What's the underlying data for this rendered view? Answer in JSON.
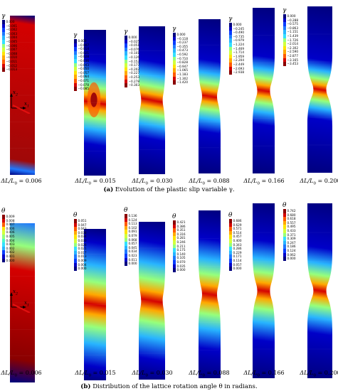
{
  "panels": [
    {
      "id": "a",
      "caption_label": "(a)",
      "caption_text": "Evolution of the plastic slip variable γ.",
      "variable": "γ",
      "specimens": [
        {
          "strain": "0.006",
          "legend": [
            "0.000",
            "−0.001",
            "−0.002",
            "−0.003",
            "−0.004",
            "−0.005",
            "−0.006",
            "−0.007",
            "−0.008",
            "−0.010",
            "−0.011",
            "−0.012",
            "−0.013"
          ]
        },
        {
          "strain": "0.015",
          "legend": [
            "0.000",
            "−0.007",
            "−0.014",
            "−0.021",
            "−0.028",
            "−0.036",
            "−0.043",
            "−0.050",
            "−0.057",
            "−0.064",
            "−0.071",
            "−0.078",
            "−0.085"
          ]
        },
        {
          "strain": "0.030",
          "legend": [
            "0.000",
            "−0.025",
            "−0.051",
            "−0.076",
            "−0.101",
            "−0.126",
            "−0.152",
            "−0.177",
            "−0.202",
            "−0.227",
            "−0.253",
            "−0.278",
            "−0.303"
          ]
        },
        {
          "strain": "0.088",
          "legend": [
            "0.000",
            "−0.118",
            "−0.237",
            "−0.355",
            "−0.473",
            "−0.592",
            "−0.710",
            "−0.828",
            "−0.947",
            "−1.065",
            "−1.183",
            "−1.302",
            "−1.420"
          ]
        },
        {
          "strain": "0.166",
          "legend": [
            "0.000",
            "−0.245",
            "−0.490",
            "−0.735",
            "−0.979",
            "−1.224",
            "−1.469",
            "−1.714",
            "−1.959",
            "−2.204",
            "−2.449",
            "−2.693",
            "−2.938"
          ]
        },
        {
          "strain": "0.200",
          "legend": [
            "0.000",
            "−0.288",
            "−0.575",
            "−0.863",
            "−1.151",
            "−1.439",
            "−1.726",
            "−2.014",
            "−2.302",
            "−2.590",
            "−2.877",
            "−3.165",
            "−3.453"
          ]
        }
      ]
    },
    {
      "id": "b",
      "caption_label": "(b)",
      "caption_text": "Distribution of the lattice rotation angle θ in radians.",
      "variable": "θ",
      "specimens": [
        {
          "strain": "0.006",
          "legend": [
            "0.009",
            "0.008",
            "0.007",
            "0.006",
            "0.006",
            "0.005",
            "0.004",
            "0.003",
            "0.002",
            "0.002",
            "0.001",
            "0.000"
          ]
        },
        {
          "strain": "0.015",
          "legend": [
            "0.051",
            "0.047",
            "0.043",
            "0.038",
            "0.034",
            "0.030",
            "0.026",
            "0.021",
            "0.017",
            "0.013",
            "0.009",
            "0.004",
            "0.000"
          ]
        },
        {
          "strain": "0.030",
          "legend": [
            "0.136",
            "0.124",
            "0.113",
            "0.102",
            "0.091",
            "0.079",
            "0.068",
            "0.057",
            "0.045",
            "0.034",
            "0.023",
            "0.011",
            "0.000"
          ]
        },
        {
          "strain": "0.088",
          "legend": [
            "0.421",
            "0.386",
            "0.351",
            "0.316",
            "0.281",
            "0.246",
            "0.211",
            "0.175",
            "0.140",
            "0.105",
            "0.070",
            "0.035",
            "0.000"
          ]
        },
        {
          "strain": "0.166",
          "legend": [
            "0.686",
            "0.629",
            "0.571",
            "0.514",
            "0.457",
            "0.400",
            "0.343",
            "0.286",
            "0.229",
            "0.171",
            "0.114",
            "0.057",
            "0.000"
          ]
        },
        {
          "strain": "0.200",
          "legend": [
            "0.742",
            "0.680",
            "0.618",
            "0.557",
            "0.495",
            "0.433",
            "0.371",
            "0.309",
            "0.247",
            "0.186",
            "0.124",
            "0.062",
            "0.000"
          ]
        }
      ]
    }
  ],
  "strain_prefix": "ΔL/L",
  "strain_subscript": "0",
  "axis_x_label": "x",
  "axis_x_sub": "1",
  "axis_y_label": "x",
  "axis_y_sub": "2",
  "colors": {
    "blue": "#0a1a8c",
    "red": "#a00808",
    "slip_line": "#e01010"
  }
}
